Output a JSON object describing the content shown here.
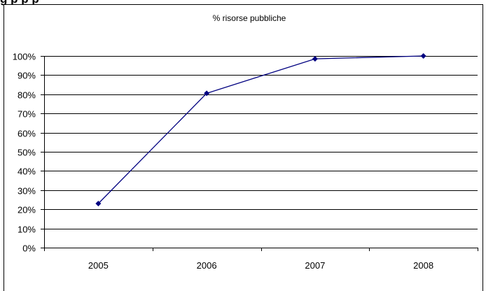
{
  "heading_fragment": "g                                                           p               p   p",
  "chart_data": {
    "type": "line",
    "title": "% risorse pubbliche",
    "xlabel": "",
    "ylabel": "",
    "categories": [
      "2005",
      "2006",
      "2007",
      "2008"
    ],
    "series": [
      {
        "values": [
          23,
          80.5,
          98.5,
          100
        ]
      }
    ],
    "ylim": [
      0,
      100
    ],
    "y_ticks": [
      "0%",
      "10%",
      "20%",
      "30%",
      "40%",
      "50%",
      "60%",
      "70%",
      "80%",
      "90%",
      "100%"
    ],
    "grid": true,
    "legend": "none",
    "line_color": "#000080",
    "grid_color": "#000000"
  }
}
